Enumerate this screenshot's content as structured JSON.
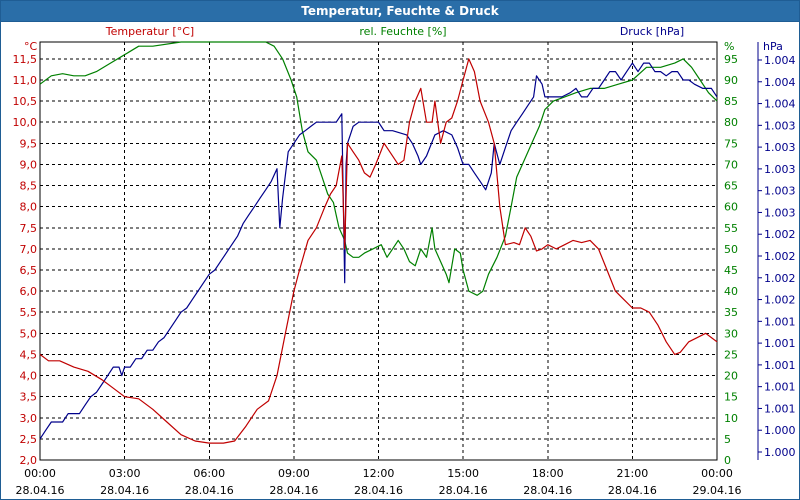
{
  "window": {
    "title": "Temperatur, Feuchte & Druck"
  },
  "colors": {
    "temperature": "#c00000",
    "humidity": "#008000",
    "pressure": "#00008b",
    "titlebar": "#2a6ea8",
    "grid": "#000000"
  },
  "chart_data": {
    "type": "line",
    "title": "Temperatur, Feuchte & Druck",
    "grid": true,
    "x_ticks": [
      {
        "x": 0,
        "time": "00:00",
        "date": "28.04.16"
      },
      {
        "x": 3,
        "time": "03:00",
        "date": "28.04.16"
      },
      {
        "x": 6,
        "time": "06:00",
        "date": "28.04.16"
      },
      {
        "x": 9,
        "time": "09:00",
        "date": "28.04.16"
      },
      {
        "x": 12,
        "time": "12:00",
        "date": "28.04.16"
      },
      {
        "x": 15,
        "time": "15:00",
        "date": "28.04.16"
      },
      {
        "x": 18,
        "time": "18:00",
        "date": "28.04.16"
      },
      {
        "x": 21,
        "time": "21:00",
        "date": "28.04.16"
      },
      {
        "x": 24,
        "time": "00:00",
        "date": "29.04.16"
      }
    ],
    "xlim": [
      0,
      24
    ],
    "axes": {
      "temperature": {
        "label": "Temperatur [°C]",
        "unit": "°C",
        "ylim": [
          2.0,
          11.9
        ],
        "ticks": [
          "2,0",
          "2,5",
          "3,0",
          "3,5",
          "4,0",
          "4,5",
          "5,0",
          "5,5",
          "6,0",
          "6,5",
          "7,0",
          "7,5",
          "8,0",
          "8,5",
          "9,0",
          "9,5",
          "10,0",
          "10,5",
          "11,0",
          "11,5"
        ]
      },
      "humidity": {
        "label": "rel. Feuchte [%]",
        "unit": "%",
        "ylim": [
          0,
          99
        ],
        "ticks": [
          "0",
          "5",
          "10",
          "15",
          "20",
          "25",
          "30",
          "35",
          "40",
          "45",
          "50",
          "55",
          "60",
          "65",
          "70",
          "75",
          "80",
          "85",
          "90",
          "95"
        ]
      },
      "pressure": {
        "label": "Druck [hPa]",
        "unit": "hPa",
        "ticks": [
          "1.000",
          "1.000",
          "1.001",
          "1.001",
          "1.001",
          "1.001",
          "1.001",
          "1.002",
          "1.002",
          "1.002",
          "1.002",
          "1.003",
          "1.003",
          "1.003",
          "1.003",
          "1.003",
          "1.004",
          "1.004",
          "1.004"
        ]
      }
    },
    "series": [
      {
        "name": "Temperatur [°C]",
        "axis": "temperature",
        "points": [
          [
            0,
            4.5
          ],
          [
            0.3,
            4.35
          ],
          [
            0.7,
            4.35
          ],
          [
            1.2,
            4.2
          ],
          [
            1.7,
            4.1
          ],
          [
            2.2,
            3.9
          ],
          [
            2.6,
            3.7
          ],
          [
            3.0,
            3.5
          ],
          [
            3.5,
            3.45
          ],
          [
            4.0,
            3.2
          ],
          [
            4.5,
            2.9
          ],
          [
            5.0,
            2.6
          ],
          [
            5.5,
            2.45
          ],
          [
            6.0,
            2.4
          ],
          [
            6.5,
            2.4
          ],
          [
            6.9,
            2.45
          ],
          [
            7.3,
            2.8
          ],
          [
            7.7,
            3.2
          ],
          [
            8.1,
            3.4
          ],
          [
            8.4,
            4.0
          ],
          [
            8.7,
            5.0
          ],
          [
            9.0,
            6.0
          ],
          [
            9.2,
            6.5
          ],
          [
            9.5,
            7.2
          ],
          [
            9.8,
            7.5
          ],
          [
            10.1,
            8.0
          ],
          [
            10.3,
            8.3
          ],
          [
            10.5,
            8.5
          ],
          [
            10.7,
            9.2
          ],
          [
            10.8,
            7.0
          ],
          [
            10.9,
            9.5
          ],
          [
            11.1,
            9.3
          ],
          [
            11.3,
            9.1
          ],
          [
            11.5,
            8.8
          ],
          [
            11.7,
            8.7
          ],
          [
            11.9,
            9.0
          ],
          [
            12.2,
            9.5
          ],
          [
            12.4,
            9.3
          ],
          [
            12.7,
            9.0
          ],
          [
            12.9,
            9.1
          ],
          [
            13.1,
            10.0
          ],
          [
            13.3,
            10.5
          ],
          [
            13.5,
            10.8
          ],
          [
            13.7,
            10.0
          ],
          [
            13.9,
            10.0
          ],
          [
            14.0,
            10.5
          ],
          [
            14.2,
            9.5
          ],
          [
            14.4,
            10.0
          ],
          [
            14.6,
            10.1
          ],
          [
            14.8,
            10.5
          ],
          [
            15.0,
            11.0
          ],
          [
            15.2,
            11.5
          ],
          [
            15.4,
            11.2
          ],
          [
            15.6,
            10.5
          ],
          [
            15.9,
            10.0
          ],
          [
            16.1,
            9.5
          ],
          [
            16.3,
            8.0
          ],
          [
            16.5,
            7.1
          ],
          [
            16.8,
            7.15
          ],
          [
            17.0,
            7.1
          ],
          [
            17.2,
            7.5
          ],
          [
            17.4,
            7.3
          ],
          [
            17.6,
            6.95
          ],
          [
            17.8,
            7.0
          ],
          [
            18.0,
            7.1
          ],
          [
            18.3,
            7.0
          ],
          [
            18.6,
            7.1
          ],
          [
            18.9,
            7.2
          ],
          [
            19.2,
            7.15
          ],
          [
            19.5,
            7.2
          ],
          [
            19.8,
            7.0
          ],
          [
            20.1,
            6.5
          ],
          [
            20.4,
            6.0
          ],
          [
            20.7,
            5.8
          ],
          [
            21.0,
            5.6
          ],
          [
            21.3,
            5.6
          ],
          [
            21.6,
            5.5
          ],
          [
            21.9,
            5.2
          ],
          [
            22.2,
            4.8
          ],
          [
            22.5,
            4.5
          ],
          [
            22.7,
            4.55
          ],
          [
            23.0,
            4.8
          ],
          [
            23.3,
            4.9
          ],
          [
            23.6,
            5.0
          ],
          [
            23.8,
            4.9
          ],
          [
            24.0,
            4.8
          ]
        ]
      },
      {
        "name": "rel. Feuchte [%]",
        "axis": "humidity",
        "points": [
          [
            0,
            89
          ],
          [
            0.4,
            91
          ],
          [
            0.8,
            91.5
          ],
          [
            1.2,
            91
          ],
          [
            1.6,
            91
          ],
          [
            2.0,
            92
          ],
          [
            2.5,
            94
          ],
          [
            3.0,
            96
          ],
          [
            3.5,
            98
          ],
          [
            4.0,
            98
          ],
          [
            5.0,
            99
          ],
          [
            6.0,
            99
          ],
          [
            7.0,
            99
          ],
          [
            7.5,
            99
          ],
          [
            8.0,
            99
          ],
          [
            8.3,
            98
          ],
          [
            8.6,
            95
          ],
          [
            8.9,
            90
          ],
          [
            9.1,
            86
          ],
          [
            9.3,
            78
          ],
          [
            9.5,
            73
          ],
          [
            9.8,
            71
          ],
          [
            10.0,
            67
          ],
          [
            10.2,
            63
          ],
          [
            10.4,
            61
          ],
          [
            10.5,
            58
          ],
          [
            10.6,
            55
          ],
          [
            10.8,
            52
          ],
          [
            10.9,
            49
          ],
          [
            11.1,
            48
          ],
          [
            11.3,
            48
          ],
          [
            11.5,
            49
          ],
          [
            11.8,
            50
          ],
          [
            12.1,
            51
          ],
          [
            12.3,
            48
          ],
          [
            12.5,
            50
          ],
          [
            12.7,
            52
          ],
          [
            12.9,
            50
          ],
          [
            13.1,
            47
          ],
          [
            13.3,
            46
          ],
          [
            13.5,
            50
          ],
          [
            13.7,
            48
          ],
          [
            13.9,
            55
          ],
          [
            14.0,
            50
          ],
          [
            14.2,
            47
          ],
          [
            14.4,
            44
          ],
          [
            14.5,
            42
          ],
          [
            14.7,
            50
          ],
          [
            14.9,
            49
          ],
          [
            15.0,
            45
          ],
          [
            15.2,
            40
          ],
          [
            15.5,
            39
          ],
          [
            15.7,
            40
          ],
          [
            15.9,
            44
          ],
          [
            16.2,
            48
          ],
          [
            16.5,
            53
          ],
          [
            16.7,
            60
          ],
          [
            16.9,
            67
          ],
          [
            17.1,
            70
          ],
          [
            17.3,
            73
          ],
          [
            17.5,
            76
          ],
          [
            17.7,
            79
          ],
          [
            17.9,
            83
          ],
          [
            18.2,
            85
          ],
          [
            18.6,
            86
          ],
          [
            19.0,
            87
          ],
          [
            19.5,
            88
          ],
          [
            20.0,
            88
          ],
          [
            20.5,
            89
          ],
          [
            21.0,
            90
          ],
          [
            21.5,
            93
          ],
          [
            22.0,
            93
          ],
          [
            22.5,
            94
          ],
          [
            22.8,
            95
          ],
          [
            23.1,
            93
          ],
          [
            23.4,
            90
          ],
          [
            23.7,
            87
          ],
          [
            24.0,
            85
          ]
        ]
      },
      {
        "name": "Druck [hPa]",
        "axis": "pressure",
        "points": [
          [
            0,
            5
          ],
          [
            0.2,
            7
          ],
          [
            0.4,
            9
          ],
          [
            0.8,
            9
          ],
          [
            1.0,
            11
          ],
          [
            1.4,
            11
          ],
          [
            1.6,
            13
          ],
          [
            1.8,
            15
          ],
          [
            2.0,
            16
          ],
          [
            2.2,
            18
          ],
          [
            2.4,
            20
          ],
          [
            2.6,
            22
          ],
          [
            2.8,
            22
          ],
          [
            2.9,
            20
          ],
          [
            3.0,
            22
          ],
          [
            3.2,
            22
          ],
          [
            3.4,
            24
          ],
          [
            3.6,
            24
          ],
          [
            3.8,
            26
          ],
          [
            4.0,
            26
          ],
          [
            4.2,
            28
          ],
          [
            4.4,
            29
          ],
          [
            4.6,
            31
          ],
          [
            4.8,
            33
          ],
          [
            5.0,
            35
          ],
          [
            5.2,
            36
          ],
          [
            5.4,
            38
          ],
          [
            5.6,
            40
          ],
          [
            5.8,
            42
          ],
          [
            6.0,
            44
          ],
          [
            6.2,
            45
          ],
          [
            6.4,
            47
          ],
          [
            6.6,
            49
          ],
          [
            6.8,
            51
          ],
          [
            7.0,
            53
          ],
          [
            7.2,
            56
          ],
          [
            7.4,
            58
          ],
          [
            7.6,
            60
          ],
          [
            7.8,
            62
          ],
          [
            8.0,
            64
          ],
          [
            8.2,
            66
          ],
          [
            8.4,
            69
          ],
          [
            8.5,
            55
          ],
          [
            8.6,
            62
          ],
          [
            8.8,
            73
          ],
          [
            9.0,
            75
          ],
          [
            9.2,
            77
          ],
          [
            9.4,
            78
          ],
          [
            9.6,
            79
          ],
          [
            9.8,
            80
          ],
          [
            10.5,
            80
          ],
          [
            10.7,
            82
          ],
          [
            10.8,
            42
          ],
          [
            10.85,
            70
          ],
          [
            10.9,
            75
          ],
          [
            11.0,
            77
          ],
          [
            11.1,
            79
          ],
          [
            11.3,
            80
          ],
          [
            12.0,
            80
          ],
          [
            12.2,
            78
          ],
          [
            12.5,
            78
          ],
          [
            13.0,
            77
          ],
          [
            13.2,
            75
          ],
          [
            13.4,
            72
          ],
          [
            13.5,
            70
          ],
          [
            13.7,
            72
          ],
          [
            14.0,
            77
          ],
          [
            14.3,
            78
          ],
          [
            14.6,
            77
          ],
          [
            14.8,
            74
          ],
          [
            15.0,
            70
          ],
          [
            15.2,
            70
          ],
          [
            15.4,
            68
          ],
          [
            15.6,
            66
          ],
          [
            15.8,
            64
          ],
          [
            16.0,
            68
          ],
          [
            16.1,
            75
          ],
          [
            16.3,
            70
          ],
          [
            16.5,
            74
          ],
          [
            16.7,
            78
          ],
          [
            16.9,
            80
          ],
          [
            17.1,
            82
          ],
          [
            17.3,
            84
          ],
          [
            17.5,
            86
          ],
          [
            17.6,
            91
          ],
          [
            17.8,
            89
          ],
          [
            17.9,
            86
          ],
          [
            18.0,
            86
          ],
          [
            18.5,
            86
          ],
          [
            18.8,
            87
          ],
          [
            19.0,
            88
          ],
          [
            19.2,
            86
          ],
          [
            19.4,
            86
          ],
          [
            19.6,
            88
          ],
          [
            19.8,
            88
          ],
          [
            20.0,
            90
          ],
          [
            20.2,
            92
          ],
          [
            20.4,
            92
          ],
          [
            20.6,
            90
          ],
          [
            20.8,
            92
          ],
          [
            21.0,
            94
          ],
          [
            21.2,
            92
          ],
          [
            21.4,
            94
          ],
          [
            21.6,
            94
          ],
          [
            21.8,
            92
          ],
          [
            22.0,
            92
          ],
          [
            22.2,
            91
          ],
          [
            22.4,
            92
          ],
          [
            22.6,
            92
          ],
          [
            22.8,
            90
          ],
          [
            23.0,
            90
          ],
          [
            23.2,
            89
          ],
          [
            23.5,
            88
          ],
          [
            23.8,
            88
          ],
          [
            24.0,
            86
          ]
        ]
      }
    ]
  }
}
